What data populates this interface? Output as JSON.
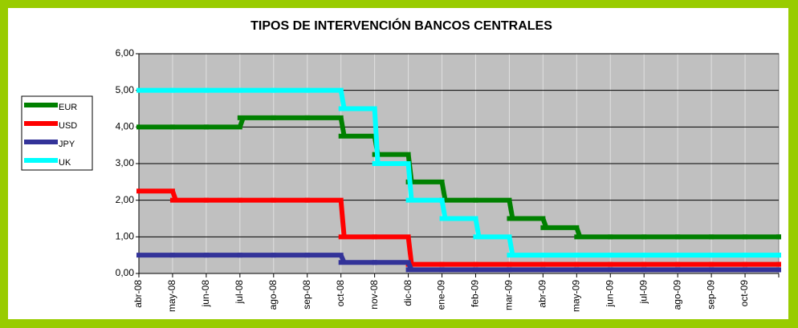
{
  "chart_data": {
    "type": "line",
    "title": "TIPOS DE INTERVENCIÓN BANCOS CENTRALES",
    "categories": [
      "abr-08",
      "may-08",
      "jun-08",
      "jul-08",
      "ago-08",
      "sep-08",
      "oct-08",
      "nov-08",
      "dic-08",
      "ene-09",
      "feb-09",
      "mar-09",
      "abr-09",
      "may-09",
      "jun-09",
      "jul-09",
      "ago-09",
      "sep-09",
      "oct-09",
      null
    ],
    "series": [
      {
        "name": "EUR",
        "color": "#008000",
        "values": [
          4,
          4,
          4,
          4.25,
          4.25,
          4.25,
          3.75,
          3.25,
          2.5,
          2,
          2,
          1.5,
          1.25,
          1,
          1,
          1,
          1,
          1,
          1,
          1
        ]
      },
      {
        "name": "USD",
        "color": "#ff0000",
        "values": [
          2.25,
          2,
          2,
          2,
          2,
          2,
          1,
          1,
          0.25,
          0.25,
          0.25,
          0.25,
          0.25,
          0.25,
          0.25,
          0.25,
          0.25,
          0.25,
          0.25,
          0.25
        ]
      },
      {
        "name": "JPY",
        "color": "#333399",
        "values": [
          0.5,
          0.5,
          0.5,
          0.5,
          0.5,
          0.5,
          0.3,
          0.3,
          0.1,
          0.1,
          0.1,
          0.1,
          0.1,
          0.1,
          0.1,
          0.1,
          0.1,
          0.1,
          0.1,
          0.1
        ]
      },
      {
        "name": "UK",
        "color": "#00ffff",
        "values": [
          5,
          5,
          5,
          5,
          5,
          5,
          4.5,
          3,
          2,
          1.5,
          1,
          0.5,
          0.5,
          0.5,
          0.5,
          0.5,
          0.5,
          0.5,
          0.5,
          0.5
        ]
      }
    ],
    "ylim": [
      0,
      6
    ],
    "yticks": [
      {
        "value": 0,
        "label": "0,00"
      },
      {
        "value": 1,
        "label": "1,00"
      },
      {
        "value": 2,
        "label": "2,00"
      },
      {
        "value": 3,
        "label": "3,00"
      },
      {
        "value": 4,
        "label": "4,00"
      },
      {
        "value": 5,
        "label": "5,00"
      },
      {
        "value": 6,
        "label": "6,00"
      }
    ],
    "grid": true,
    "legend": "left",
    "step": "after"
  }
}
